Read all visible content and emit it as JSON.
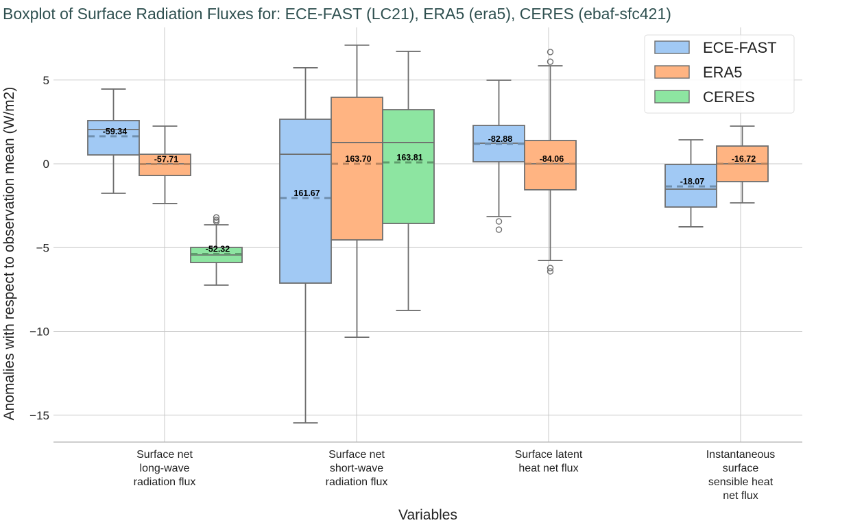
{
  "chart_data": {
    "type": "boxplot",
    "title": "Boxplot of Surface Radiation Fluxes for: ECE-FAST (LC21), ERA5 (era5), CERES (ebaf-sfc421)",
    "xlabel": "Variables",
    "ylabel": "Anomalies with respect to observation mean (W/m2)",
    "ylim": [
      -16.5,
      8.5
    ],
    "yticks": [
      5,
      0,
      -5,
      -10,
      -15
    ],
    "grid": true,
    "legend_position": "top-right",
    "categories": [
      [
        "Surface net",
        "long-wave",
        "radiation flux"
      ],
      [
        "Surface net",
        "short-wave",
        "radiation flux"
      ],
      [
        "Surface latent",
        "heat net flux"
      ],
      [
        "Instantaneous",
        "surface",
        "sensible heat",
        "net flux"
      ]
    ],
    "series": [
      {
        "name": "ECE-FAST",
        "color": "#a1c9f4",
        "mean_line_color": "#6f8fae"
      },
      {
        "name": "ERA5",
        "color": "#ffb482",
        "mean_line_color": "#b9845f"
      },
      {
        "name": "CERES",
        "color": "#8de5a1",
        "mean_line_color": "#5e9c6c"
      }
    ],
    "boxes": [
      {
        "category": 0,
        "series": 0,
        "whislo": -1.76,
        "q1": 0.53,
        "median": 2.05,
        "q3": 2.58,
        "whishi": 4.46,
        "mean": 1.64,
        "outliers": [],
        "label": "-59.34"
      },
      {
        "category": 0,
        "series": 1,
        "whislo": -2.37,
        "q1": -0.7,
        "median": 0.0,
        "q3": 0.57,
        "whishi": 2.25,
        "mean": -0.02,
        "outliers": [],
        "label": "-57.71"
      },
      {
        "category": 0,
        "series": 2,
        "whislo": -7.24,
        "q1": -5.89,
        "median": -5.44,
        "q3": -4.99,
        "whishi": -3.64,
        "mean": -5.38,
        "outliers": [
          -3.2,
          -3.35,
          -3.45
        ],
        "label": "-52.32"
      },
      {
        "category": 1,
        "series": 0,
        "whislo": -15.46,
        "q1": -7.12,
        "median": 0.57,
        "q3": 2.66,
        "whishi": 5.73,
        "mean": -2.04,
        "outliers": [],
        "label": "161.67"
      },
      {
        "category": 1,
        "series": 1,
        "whislo": -10.35,
        "q1": -4.54,
        "median": 1.27,
        "q3": 3.97,
        "whishi": 7.08,
        "mean": 0.0,
        "outliers": [],
        "label": "163.70"
      },
      {
        "category": 1,
        "series": 2,
        "whislo": -8.75,
        "q1": -3.56,
        "median": 1.27,
        "q3": 3.23,
        "whishi": 6.71,
        "mean": 0.08,
        "outliers": [],
        "label": "163.81"
      },
      {
        "category": 2,
        "series": 0,
        "whislo": -3.15,
        "q1": 0.12,
        "median": 1.23,
        "q3": 2.29,
        "whishi": 4.99,
        "mean": 1.19,
        "outliers": [
          -3.44,
          -3.93
        ],
        "label": "-82.88"
      },
      {
        "category": 2,
        "series": 1,
        "whislo": -5.77,
        "q1": -1.55,
        "median": 0.0,
        "q3": 1.39,
        "whishi": 5.85,
        "mean": 0.0,
        "outliers": [
          6.67,
          6.09,
          -6.22,
          -6.42
        ],
        "label": "-84.06"
      },
      {
        "category": 3,
        "series": 0,
        "whislo": -3.76,
        "q1": -2.58,
        "median": -1.51,
        "q3": -0.04,
        "whishi": 1.43,
        "mean": -1.35,
        "outliers": [],
        "label": "-18.07"
      },
      {
        "category": 3,
        "series": 1,
        "whislo": -2.33,
        "q1": -1.06,
        "median": 0.0,
        "q3": 1.06,
        "whishi": 2.25,
        "mean": 0.0,
        "outliers": [],
        "label": "-16.72"
      }
    ]
  }
}
